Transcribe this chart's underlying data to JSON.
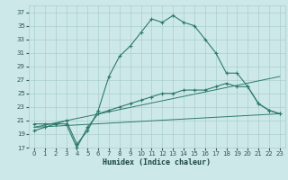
{
  "xlabel": "Humidex (Indice chaleur)",
  "background_color": "#cde8e8",
  "grid_color": "#aacfcf",
  "line_color": "#2d7a6a",
  "xlim": [
    -0.5,
    23.5
  ],
  "ylim": [
    17,
    38
  ],
  "xticks": [
    0,
    1,
    2,
    3,
    4,
    5,
    6,
    7,
    8,
    9,
    10,
    11,
    12,
    13,
    14,
    15,
    16,
    17,
    18,
    19,
    20,
    21,
    22,
    23
  ],
  "yticks": [
    17,
    19,
    21,
    23,
    25,
    27,
    29,
    31,
    33,
    35,
    37
  ],
  "lines": [
    {
      "x": [
        0,
        1,
        2,
        3,
        4,
        5,
        6,
        7,
        8,
        9,
        10,
        11,
        12,
        13,
        14,
        15,
        16,
        17,
        18,
        19,
        20,
        21,
        22,
        23
      ],
      "y": [
        19.5,
        20.0,
        20.5,
        21.0,
        17.5,
        19.5,
        22.5,
        27.5,
        30.5,
        32.0,
        34.0,
        36.0,
        35.5,
        36.5,
        35.5,
        35.0,
        33.0,
        31.0,
        28.0,
        28.0,
        26.0,
        23.5,
        22.5,
        22.0
      ],
      "marker": true
    },
    {
      "x": [
        0,
        1,
        2,
        3,
        4,
        5,
        6,
        7,
        8,
        9,
        10,
        11,
        12,
        13,
        14,
        15,
        16,
        17,
        18,
        19,
        20,
        21,
        22,
        23
      ],
      "y": [
        20.5,
        20.5,
        20.5,
        20.5,
        17.0,
        20.0,
        22.0,
        22.5,
        23.0,
        23.5,
        24.0,
        24.5,
        25.0,
        25.0,
        25.5,
        25.5,
        25.5,
        26.0,
        26.5,
        26.0,
        26.0,
        23.5,
        22.5,
        22.0
      ],
      "marker": true
    },
    {
      "x": [
        0,
        23
      ],
      "y": [
        20.0,
        27.5
      ],
      "marker": false
    },
    {
      "x": [
        0,
        23
      ],
      "y": [
        20.0,
        22.0
      ],
      "marker": false
    }
  ]
}
